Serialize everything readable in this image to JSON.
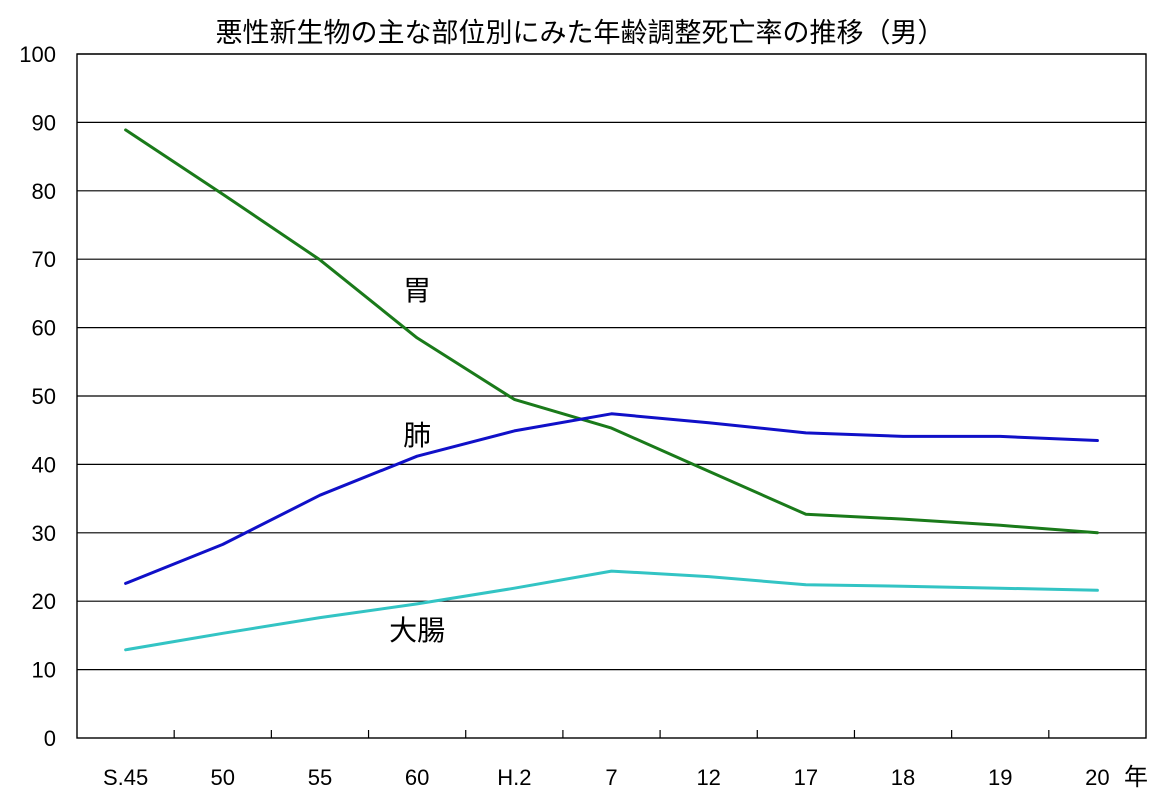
{
  "chart_data": {
    "type": "line",
    "title": "悪性新生物の主な部位別にみた年齢調整死亡率の推移（男）",
    "xlabel": "",
    "ylabel": "",
    "x_unit": "年",
    "categories": [
      "S.45",
      "50",
      "55",
      "60",
      "H.2",
      "7",
      "12",
      "17",
      "18",
      "19",
      "20"
    ],
    "ylim": [
      0,
      100
    ],
    "yticks": [
      0,
      10,
      20,
      30,
      40,
      50,
      60,
      70,
      80,
      90,
      100
    ],
    "grid": true,
    "legend": "none",
    "series": [
      {
        "name": "胃",
        "color": "#1a7a1a",
        "values": [
          88.9,
          79.5,
          69.9,
          58.5,
          49.5,
          45.3,
          39.0,
          32.7,
          32.0,
          31.1,
          30.0
        ]
      },
      {
        "name": "肺",
        "color": "#1010c8",
        "values": [
          22.6,
          28.3,
          35.5,
          41.2,
          44.9,
          47.4,
          46.1,
          44.6,
          44.1,
          44.1,
          43.5
        ]
      },
      {
        "name": "大腸",
        "color": "#33c4c4",
        "values": [
          12.9,
          15.3,
          17.6,
          19.6,
          21.9,
          24.4,
          23.6,
          22.4,
          22.2,
          21.9,
          21.6
        ]
      }
    ]
  }
}
